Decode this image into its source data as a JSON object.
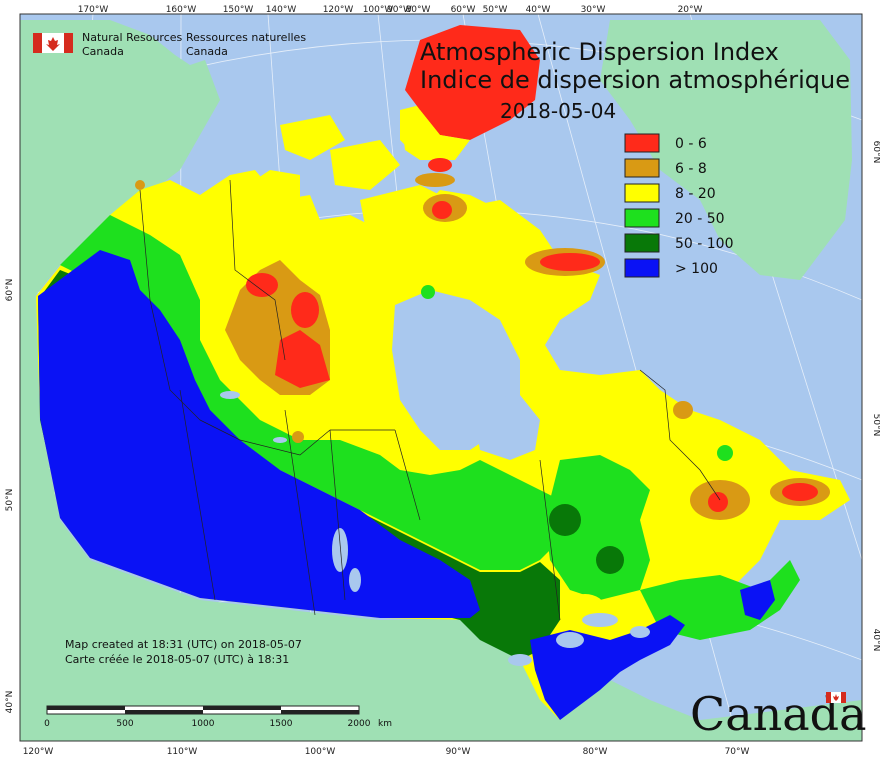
{
  "map": {
    "title_en": "Atmospheric Dispersion Index",
    "title_fr": "Indice de dispersion atmosphérique",
    "date": "2018-05-04",
    "agency_en_line1": "Natural Resources",
    "agency_en_line2": "Canada",
    "agency_fr_line1": "Ressources naturelles",
    "agency_fr_line2": "Canada",
    "credit_en": "Map created at 18:31 (UTC) on 2018-05-07",
    "credit_fr": "Carte créée le 2018-05-07 (UTC) à 18:31",
    "wordmark": "Canada"
  },
  "legend": [
    {
      "label": "0 - 6",
      "color": "#ff2a1a"
    },
    {
      "label": "6 - 8",
      "color": "#d99a14"
    },
    {
      "label": "8 - 20",
      "color": "#ffff00"
    },
    {
      "label": "20 - 50",
      "color": "#1ee01e"
    },
    {
      "label": "50 - 100",
      "color": "#087808"
    },
    {
      "label": "> 100",
      "color": "#0a12f5"
    }
  ],
  "top_ticks": [
    "170°W",
    "160°W",
    "150°W",
    "140°W",
    "120°W",
    "100°W",
    "90°W",
    "80°W",
    "60°W",
    "50°W",
    "40°W",
    "30°W",
    "20°W"
  ],
  "bottom_ticks": [
    "120°W",
    "110°W",
    "100°W",
    "90°W",
    "80°W",
    "70°W"
  ],
  "left_ticks": [
    "60°N",
    "50°N",
    "40°N"
  ],
  "right_ticks": [
    "60°N",
    "50°N",
    "40°N"
  ],
  "scale": {
    "labels": [
      "0",
      "500",
      "1000",
      "1500",
      "2000"
    ],
    "unit": "km"
  }
}
